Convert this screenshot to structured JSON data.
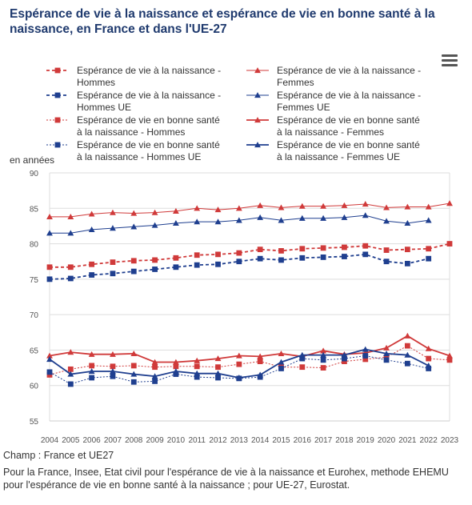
{
  "title": "Espérance de vie à la naissance et espérance de vie en bonne santé à la naissance, en France et dans l'UE-27",
  "menu_icon": "hamburger-menu-icon",
  "champ": "Champ : France et UE27",
  "source": "Pour la France, Insee, Etat civil pour l'espérance de vie à la naissance et Eurohex, methode EHEMU pour l'espérance de vie en bonne santé à la naissance ; pour UE-27, Eurostat.",
  "chart_data": {
    "type": "line",
    "x": [
      "2004",
      "2005",
      "2006",
      "2007",
      "2008",
      "2009",
      "2010",
      "2011",
      "2012",
      "2013",
      "2014",
      "2015",
      "2016",
      "2017",
      "2018",
      "2019",
      "2020",
      "2021",
      "2022",
      "2023"
    ],
    "ylabel": "en années",
    "ylim": [
      55,
      90
    ],
    "yticks": [
      55,
      60,
      65,
      70,
      75,
      80,
      85,
      90
    ],
    "grid": true,
    "legend_position": "top",
    "series": [
      {
        "name": [
          "Espérance de vie à la naissance -",
          "Hommes"
        ],
        "color": "#d03a3a",
        "marker": "square",
        "dash": "4,3",
        "width": 1.8,
        "values": [
          76.7,
          76.7,
          77.1,
          77.4,
          77.6,
          77.7,
          78.0,
          78.4,
          78.5,
          78.7,
          79.2,
          79.0,
          79.3,
          79.4,
          79.5,
          79.7,
          79.1,
          79.2,
          79.3,
          80.0
        ]
      },
      {
        "name": [
          "Espérance de vie à la naissance -",
          "Femmes"
        ],
        "color": "#d03a3a",
        "marker": "triangle",
        "dash": "",
        "width": 1.0,
        "values": [
          83.8,
          83.8,
          84.2,
          84.4,
          84.3,
          84.4,
          84.6,
          85.0,
          84.8,
          85.0,
          85.4,
          85.1,
          85.3,
          85.3,
          85.4,
          85.6,
          85.1,
          85.2,
          85.2,
          85.7
        ]
      },
      {
        "name": [
          "Espérance de vie à la naissance -",
          "Hommes UE"
        ],
        "color": "#1f3f8f",
        "marker": "square",
        "dash": "4,3",
        "width": 1.8,
        "values": [
          75.0,
          75.1,
          75.6,
          75.8,
          76.1,
          76.4,
          76.7,
          77.0,
          77.1,
          77.5,
          77.9,
          77.7,
          78.0,
          78.1,
          78.2,
          78.5,
          77.5,
          77.2,
          77.9,
          null
        ]
      },
      {
        "name": [
          "Espérance de vie à la naissance -",
          "Femmes UE"
        ],
        "color": "#1f3f8f",
        "marker": "triangle",
        "dash": "",
        "width": 1.0,
        "values": [
          81.5,
          81.5,
          82.0,
          82.2,
          82.4,
          82.6,
          82.9,
          83.1,
          83.1,
          83.3,
          83.7,
          83.3,
          83.6,
          83.6,
          83.7,
          84.0,
          83.2,
          82.9,
          83.3,
          null
        ]
      },
      {
        "name": [
          "Espérance de vie en bonne santé",
          "à la naissance - Hommes"
        ],
        "color": "#d03a3a",
        "marker": "square",
        "dash": "2,2",
        "width": 1.0,
        "values": [
          61.5,
          62.3,
          62.8,
          62.7,
          62.8,
          62.6,
          62.7,
          62.7,
          62.6,
          63.0,
          63.4,
          62.6,
          62.6,
          62.5,
          63.4,
          63.7,
          64.0,
          65.6,
          63.8,
          63.6
        ]
      },
      {
        "name": [
          "Espérance de vie en bonne santé",
          "à la naissance - Femmes"
        ],
        "color": "#d03a3a",
        "marker": "triangle",
        "dash": "",
        "width": 1.8,
        "values": [
          64.2,
          64.7,
          64.4,
          64.4,
          64.5,
          63.3,
          63.3,
          63.5,
          63.8,
          64.2,
          64.1,
          64.5,
          64.1,
          64.9,
          64.4,
          64.6,
          65.3,
          67.0,
          65.2,
          64.2
        ]
      },
      {
        "name": [
          "Espérance de vie en bonne santé",
          "à la naissance - Hommes UE"
        ],
        "color": "#1f3f8f",
        "marker": "square",
        "dash": "2,2",
        "width": 1.0,
        "values": [
          61.9,
          60.2,
          61.1,
          61.3,
          60.5,
          60.6,
          61.6,
          61.2,
          61.1,
          61.0,
          61.2,
          62.4,
          63.8,
          63.6,
          63.8,
          64.2,
          63.6,
          63.1,
          62.4,
          null
        ]
      },
      {
        "name": [
          "Espérance de vie en bonne santé",
          "à la naissance - Femmes UE"
        ],
        "color": "#1f3f8f",
        "marker": "triangle",
        "dash": "",
        "width": 1.8,
        "values": [
          63.7,
          61.6,
          62.0,
          62.0,
          61.6,
          61.3,
          62.0,
          61.7,
          61.7,
          61.1,
          61.5,
          63.3,
          64.3,
          64.3,
          64.3,
          65.1,
          64.5,
          64.3,
          62.8,
          null
        ]
      }
    ]
  }
}
